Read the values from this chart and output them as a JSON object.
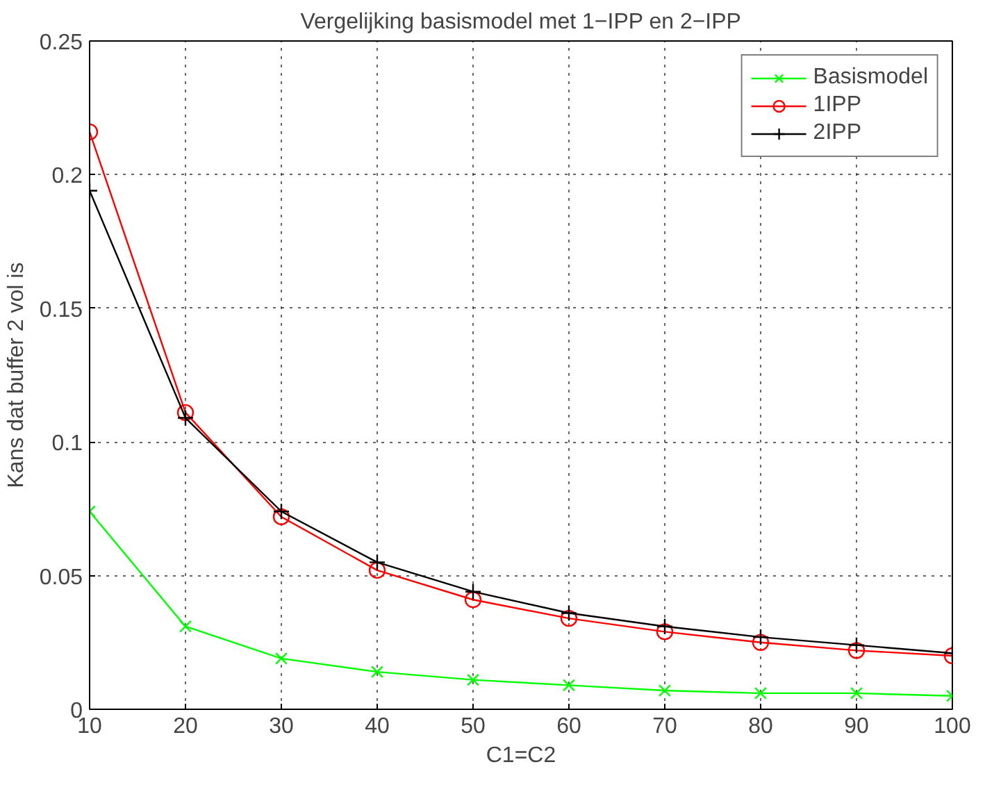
{
  "chart_data": {
    "type": "line",
    "title": "Vergelijking basismodel met 1−IPP en 2−IPP",
    "xlabel": "C1=C2",
    "ylabel": "Kans dat buffer 2 vol is",
    "x": [
      10,
      20,
      30,
      40,
      50,
      60,
      70,
      80,
      90,
      100
    ],
    "series": [
      {
        "name": "Basismodel",
        "color": "#00ff00",
        "marker": "cross",
        "values": [
          0.074,
          0.031,
          0.019,
          0.014,
          0.011,
          0.009,
          0.007,
          0.006,
          0.006,
          0.005
        ]
      },
      {
        "name": "1IPP",
        "color": "#ff0000",
        "marker": "circle",
        "values": [
          0.216,
          0.111,
          0.072,
          0.052,
          0.041,
          0.034,
          0.029,
          0.025,
          0.022,
          0.02
        ]
      },
      {
        "name": "2IPP",
        "color": "#000000",
        "marker": "plus",
        "values": [
          0.194,
          0.109,
          0.074,
          0.055,
          0.044,
          0.036,
          0.031,
          0.027,
          0.024,
          0.021
        ]
      }
    ],
    "xlim": [
      10,
      100
    ],
    "xticks": [
      10,
      20,
      30,
      40,
      50,
      60,
      70,
      80,
      90,
      100
    ],
    "ylim": [
      0,
      0.25
    ],
    "yticks": [
      0,
      0.05,
      0.1,
      0.15,
      0.2,
      0.25
    ],
    "grid": true,
    "legend": "top right",
    "line_style": "solid"
  }
}
